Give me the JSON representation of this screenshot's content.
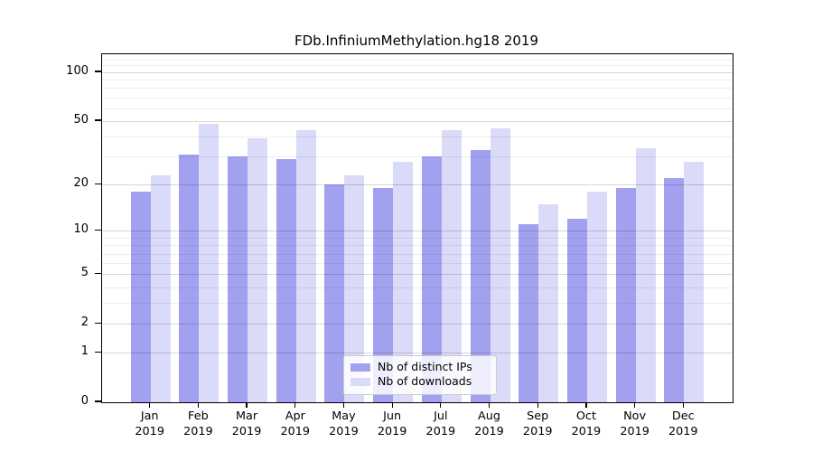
{
  "page": {
    "background": "#ffffff",
    "axis_color": "#000000",
    "grid_major_color": "#d8d8d8",
    "grid_minor_color": "#ececec"
  },
  "chart_data": {
    "type": "bar",
    "title": "FDb.InfiniumMethylation.hg18 2019",
    "categories": [
      "Jan",
      "Feb",
      "Mar",
      "Apr",
      "May",
      "Jun",
      "Jul",
      "Aug",
      "Sep",
      "Oct",
      "Nov",
      "Dec"
    ],
    "category_year": "2019",
    "series": [
      {
        "name": "Nb of distinct IPs",
        "color": "#a1a1f0",
        "values": [
          18,
          31,
          30,
          29,
          20,
          19,
          30,
          33,
          11,
          12,
          19,
          22
        ]
      },
      {
        "name": "Nb of downloads",
        "color": "#dadaf9",
        "values": [
          23,
          48,
          39,
          44,
          23,
          28,
          44,
          45,
          15,
          18,
          34,
          28
        ]
      }
    ],
    "y_scale": "log1p",
    "y_ticks": [
      0,
      1,
      2,
      5,
      10,
      20,
      50,
      100
    ],
    "y_minor_ticks": [
      3,
      4,
      6,
      7,
      8,
      9,
      30,
      40,
      60,
      70,
      80,
      90,
      110,
      120
    ],
    "ylim": [
      0,
      129
    ],
    "xlabel": "",
    "ylabel": "",
    "grid": true,
    "legend_position": "lower center inside"
  }
}
